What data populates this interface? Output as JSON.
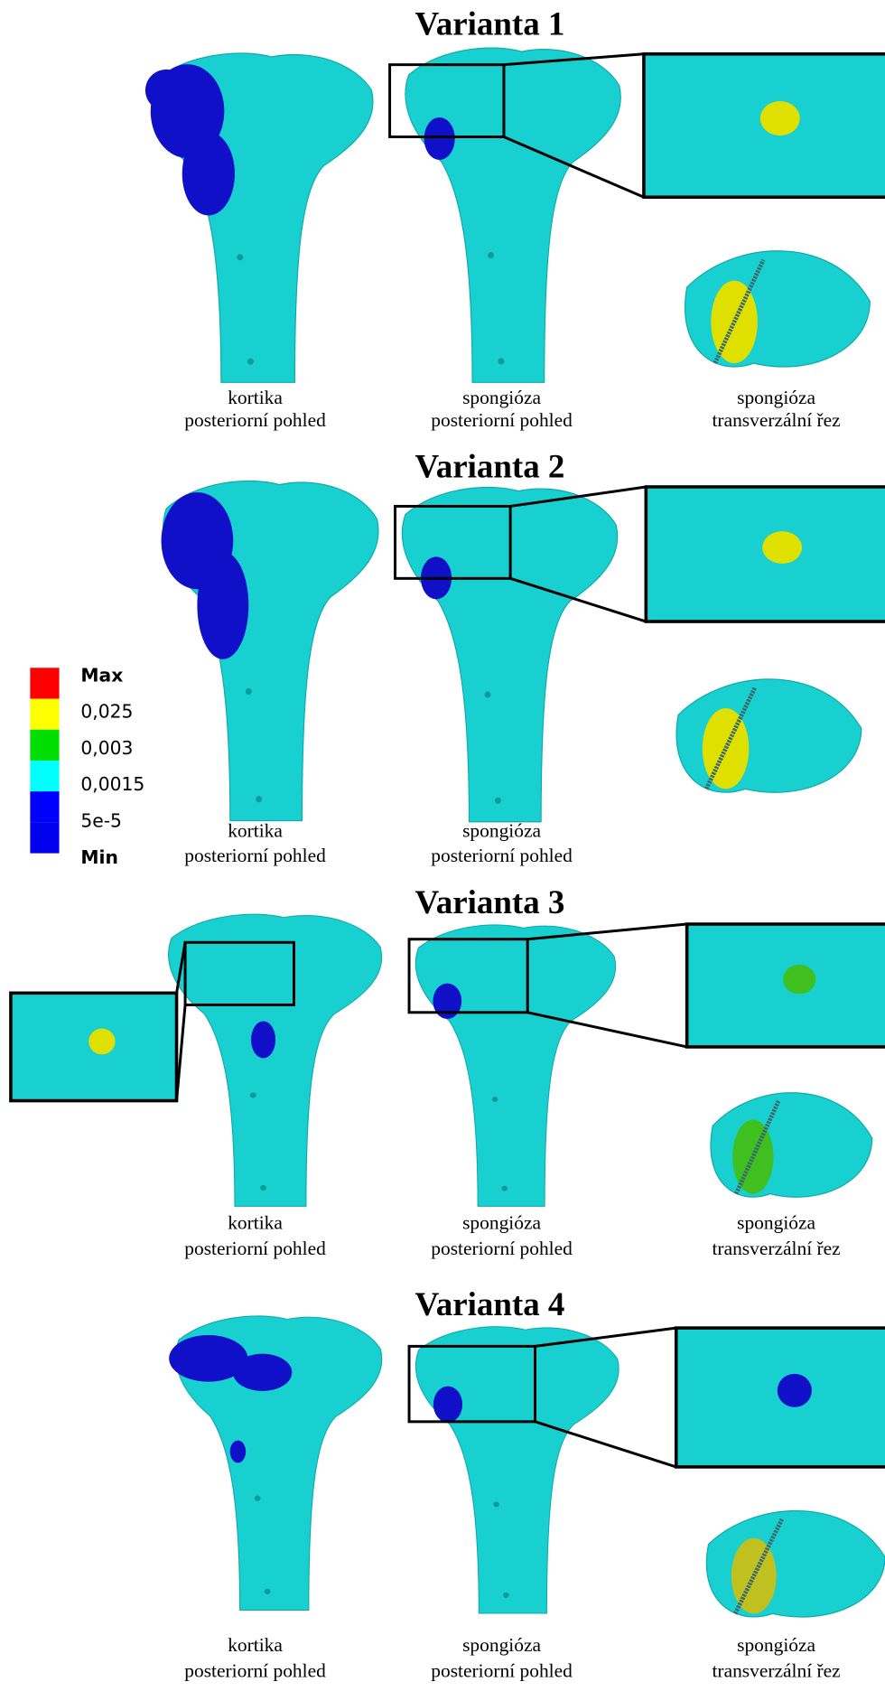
{
  "legend": {
    "labels": [
      "Max",
      "0,025",
      "0,003",
      "0,0015",
      "5e-5",
      "Min"
    ],
    "colors": [
      "#ff0000",
      "#ffff00",
      "#00dd00",
      "#00ffff",
      "#0000ff",
      "#0000ee"
    ]
  },
  "panels": [
    {
      "title": "Varianta 1",
      "captions": [
        [
          "kortika",
          "posteriorní pohled"
        ],
        [
          "spongióza",
          "posteriorní pohled"
        ],
        [
          "spongióza",
          "transverzální řez"
        ]
      ]
    },
    {
      "title": "Varianta 2",
      "captions": [
        [
          "kortika",
          "posteriorní pohled"
        ],
        [
          "spongióza",
          "posteriorní pohled"
        ]
      ]
    },
    {
      "title": "Varianta 3",
      "captions": [
        [
          "kortika",
          "posteriorní pohled"
        ],
        [
          "spongióza",
          "posteriorní pohled"
        ],
        [
          "spongióza",
          "transverzální řez"
        ]
      ]
    },
    {
      "title": "Varianta 4",
      "captions": [
        [
          "kortika",
          "posteriorní pohled"
        ],
        [
          "spongióza",
          "posteriorní pohled"
        ],
        [
          "spongióza",
          "transverzální řez"
        ]
      ]
    }
  ]
}
